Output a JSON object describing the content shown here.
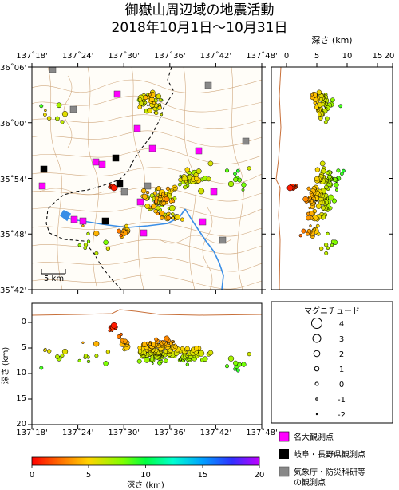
{
  "title_line1": "御嶽山周辺域の地震活動",
  "title_line2": "2018年10月1日～10月31日",
  "map": {
    "lon_labels": [
      "137˚18'",
      "137˚24'",
      "137˚30'",
      "137˚36'",
      "137˚42'",
      "137˚48'"
    ],
    "lat_labels": [
      "36˚06'",
      "36˚00'",
      "35˚54'",
      "35˚48'",
      "35˚42'"
    ],
    "scale_label": "5 km"
  },
  "depth_axis": {
    "title": "深さ (km)",
    "ticks": [
      "0",
      "5",
      "10",
      "15",
      "20"
    ]
  },
  "section": {
    "ylabel": "深さ (km)",
    "yticks": [
      "0",
      "5",
      "10",
      "15",
      "20"
    ],
    "lon_labels": [
      "137˚18'",
      "137˚24'",
      "137˚30'",
      "137˚36'",
      "137˚42'",
      "137˚48'"
    ]
  },
  "magnitude_legend": {
    "title": "マグニチュード",
    "labels": [
      "4",
      "3",
      "2",
      "1",
      "0",
      "-1",
      "-2"
    ]
  },
  "station_legend": [
    {
      "label": "名大観測点",
      "color": "#ff00ff"
    },
    {
      "label": "岐阜・長野県観測点",
      "color": "#000000"
    },
    {
      "label": "気象庁・防災科研等",
      "color": "#888888"
    },
    {
      "label": "の観測点",
      "color": ""
    }
  ],
  "colorbar": {
    "label": "深さ (km)",
    "ticks": [
      "0",
      "5",
      "10",
      "15",
      "20"
    ]
  }
}
